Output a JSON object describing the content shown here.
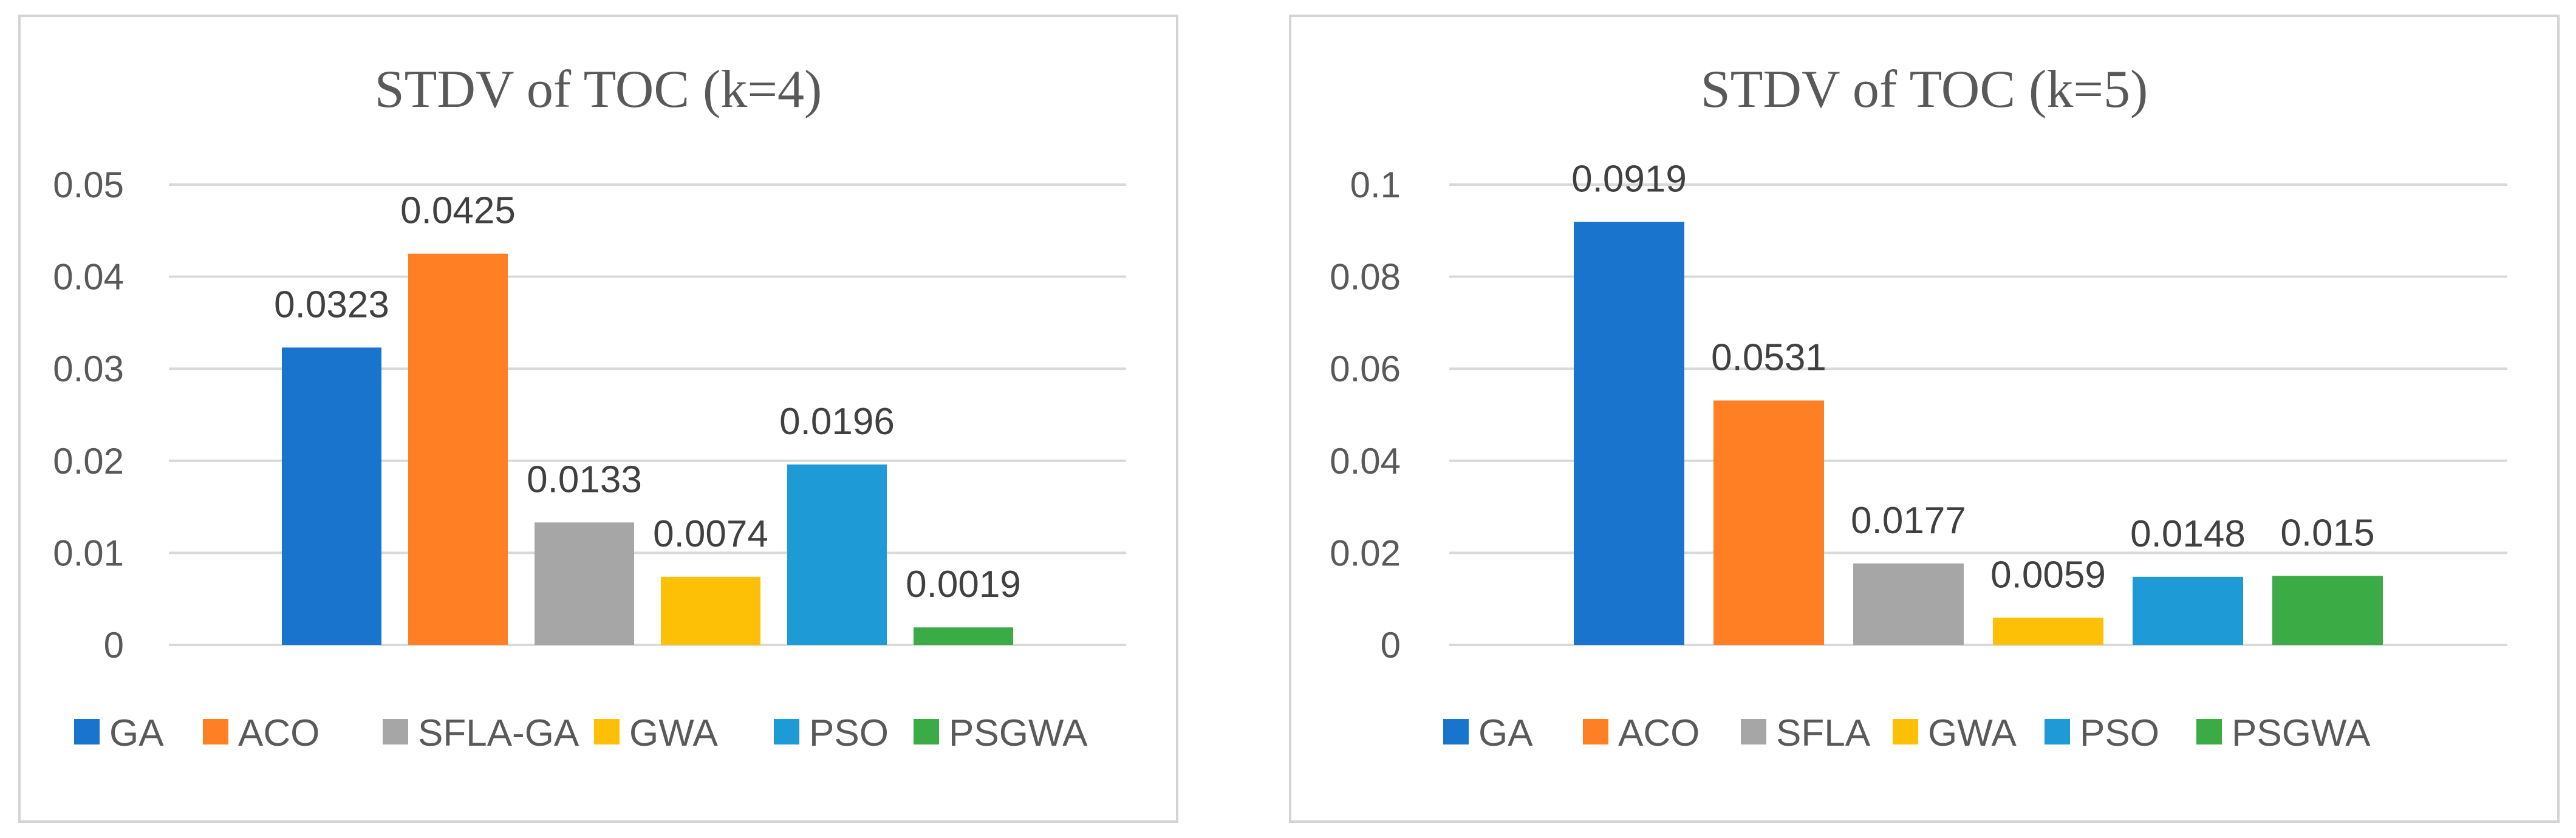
{
  "chart_data": [
    {
      "type": "bar",
      "title": "STDV of  TOC (k=4)",
      "categories": [
        "GA",
        "ACO",
        "SFLA-GA",
        "GWA",
        "PSO",
        "PSGWA"
      ],
      "values": [
        0.0323,
        0.0425,
        0.0133,
        0.0074,
        0.0196,
        0.0019
      ],
      "value_labels": [
        "0.0323",
        "0.0425",
        "0.0133",
        "0.0074",
        "0.0196",
        "0.0019"
      ],
      "colors": [
        "#1874cd",
        "#fe7f24",
        "#a6a6a6",
        "#fec006",
        "#1e9bd7",
        "#3bab46"
      ],
      "yticks": [
        0,
        0.01,
        0.02,
        0.03,
        0.04,
        0.05
      ],
      "ytick_labels": [
        "0",
        "0.01",
        "0.02",
        "0.03",
        "0.04",
        "0.05"
      ],
      "ylim": [
        0,
        0.05
      ],
      "xlabel": "",
      "ylabel": "",
      "grid": true,
      "legend_position": "bottom"
    },
    {
      "type": "bar",
      "title": "STDV of  TOC (k=5)",
      "categories": [
        "GA",
        "ACO",
        "SFLA",
        "GWA",
        "PSO",
        "PSGWA"
      ],
      "values": [
        0.0919,
        0.0531,
        0.0177,
        0.0059,
        0.0148,
        0.015
      ],
      "value_labels": [
        "0.0919",
        "0.0531",
        "0.0177",
        "0.0059",
        "0.0148",
        "0.015"
      ],
      "colors": [
        "#1874cd",
        "#fe7f24",
        "#a6a6a6",
        "#fec006",
        "#1e9bd7",
        "#3bab46"
      ],
      "yticks": [
        0,
        0.02,
        0.04,
        0.06,
        0.08,
        0.1
      ],
      "ytick_labels": [
        "0",
        "0.02",
        "0.04",
        "0.06",
        "0.08",
        "0.1"
      ],
      "ylim": [
        0,
        0.1
      ],
      "xlabel": "",
      "ylabel": "",
      "grid": true,
      "legend_position": "bottom"
    }
  ]
}
